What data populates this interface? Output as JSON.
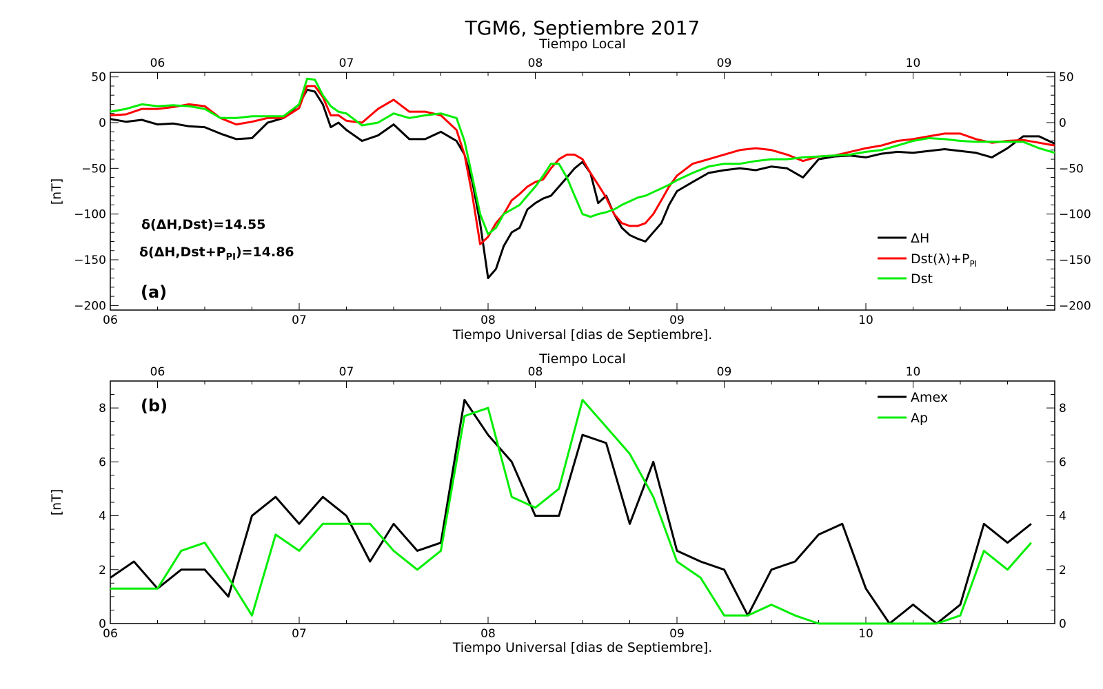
{
  "figure": {
    "title": "TGM6, Septiembre 2017"
  },
  "chart_data": [
    {
      "panel": "(a)",
      "type": "line",
      "xlabel": "Tiempo Universal [dias de Septiembre].",
      "x_top_label": "Tiempo Local",
      "ylabel": "[nT]",
      "x_tick_labels": [
        "06",
        "07",
        "08",
        "09",
        "10"
      ],
      "x_top_tick_labels": [
        "06",
        "07",
        "08",
        "09",
        "10"
      ],
      "y_ticks": [
        -200,
        -150,
        -100,
        -50,
        0,
        50
      ],
      "y_tick_labels": [
        "−200",
        "−150",
        "−100",
        "−50",
        "0",
        "50"
      ],
      "ylim": [
        -205,
        55
      ],
      "xlim_days": [
        6,
        11
      ],
      "annotations": {
        "line1": "δ(ΔH,Dst)=14.55",
        "line2_prefix": "δ(ΔH,Dst+P",
        "line2_sub": "PI",
        "line2_suffix": ")=14.86"
      },
      "legend_position": "lower-right",
      "series": [
        {
          "name": "ΔH",
          "color": "#000000",
          "x": [
            6.0,
            6.083,
            6.167,
            6.25,
            6.333,
            6.417,
            6.5,
            6.583,
            6.667,
            6.75,
            6.833,
            6.917,
            7.0,
            7.042,
            7.083,
            7.125,
            7.167,
            7.208,
            7.25,
            7.333,
            7.417,
            7.5,
            7.583,
            7.667,
            7.75,
            7.833,
            7.875,
            7.917,
            7.958,
            8.0,
            8.042,
            8.083,
            8.125,
            8.167,
            8.208,
            8.25,
            8.292,
            8.333,
            8.375,
            8.417,
            8.458,
            8.5,
            8.542,
            8.583,
            8.625,
            8.667,
            8.708,
            8.75,
            8.792,
            8.833,
            8.875,
            8.917,
            8.958,
            9.0,
            9.083,
            9.167,
            9.25,
            9.333,
            9.417,
            9.5,
            9.583,
            9.667,
            9.75,
            9.833,
            9.917,
            10.0,
            10.083,
            10.167,
            10.25,
            10.333,
            10.417,
            10.5,
            10.583,
            10.667,
            10.75,
            10.833,
            10.917,
            11.0
          ],
          "values": [
            4,
            1,
            3,
            -2,
            -1,
            -4,
            -5,
            -12,
            -18,
            -17,
            0,
            5,
            20,
            36,
            34,
            20,
            -5,
            0,
            -8,
            -20,
            -14,
            -2,
            -18,
            -18,
            -10,
            -20,
            -35,
            -65,
            -110,
            -170,
            -160,
            -135,
            -120,
            -115,
            -95,
            -88,
            -83,
            -80,
            -70,
            -60,
            -50,
            -43,
            -55,
            -88,
            -80,
            -100,
            -115,
            -123,
            -127,
            -130,
            -120,
            -110,
            -90,
            -75,
            -65,
            -55,
            -52,
            -50,
            -52,
            -48,
            -50,
            -60,
            -40,
            -37,
            -36,
            -38,
            -34,
            -32,
            -33,
            -31,
            -29,
            -31,
            -33,
            -38,
            -28,
            -15,
            -15,
            -23
          ]
        },
        {
          "name": "Dst(λ)+P",
          "name_sub": "PI",
          "color": "#ff0000",
          "x": [
            6.0,
            6.083,
            6.167,
            6.25,
            6.333,
            6.417,
            6.5,
            6.583,
            6.667,
            6.75,
            6.833,
            6.917,
            7.0,
            7.042,
            7.083,
            7.125,
            7.167,
            7.208,
            7.25,
            7.333,
            7.417,
            7.5,
            7.583,
            7.667,
            7.75,
            7.833,
            7.875,
            7.917,
            7.958,
            8.0,
            8.042,
            8.083,
            8.125,
            8.167,
            8.208,
            8.25,
            8.292,
            8.333,
            8.375,
            8.417,
            8.458,
            8.5,
            8.542,
            8.583,
            8.625,
            8.667,
            8.708,
            8.75,
            8.792,
            8.833,
            8.875,
            8.917,
            8.958,
            9.0,
            9.083,
            9.167,
            9.25,
            9.333,
            9.417,
            9.5,
            9.583,
            9.667,
            9.75,
            9.833,
            9.917,
            10.0,
            10.083,
            10.167,
            10.25,
            10.333,
            10.417,
            10.5,
            10.583,
            10.667,
            10.75,
            10.833,
            10.917,
            11.0
          ],
          "values": [
            8,
            9,
            15,
            15,
            17,
            20,
            18,
            5,
            -2,
            1,
            5,
            5,
            16,
            40,
            40,
            28,
            8,
            8,
            2,
            0,
            15,
            25,
            12,
            12,
            8,
            -8,
            -35,
            -80,
            -133,
            -125,
            -110,
            -100,
            -85,
            -78,
            -70,
            -65,
            -62,
            -50,
            -40,
            -35,
            -35,
            -40,
            -55,
            -68,
            -82,
            -100,
            -110,
            -113,
            -113,
            -110,
            -100,
            -85,
            -70,
            -58,
            -45,
            -40,
            -35,
            -30,
            -28,
            -30,
            -35,
            -42,
            -37,
            -36,
            -32,
            -28,
            -25,
            -20,
            -18,
            -15,
            -12,
            -12,
            -18,
            -22,
            -20,
            -19,
            -22,
            -25
          ]
        },
        {
          "name": "Dst",
          "color": "#00ee00",
          "x": [
            6.0,
            6.083,
            6.167,
            6.25,
            6.333,
            6.417,
            6.5,
            6.583,
            6.667,
            6.75,
            6.833,
            6.917,
            7.0,
            7.042,
            7.083,
            7.125,
            7.167,
            7.208,
            7.25,
            7.333,
            7.417,
            7.5,
            7.583,
            7.667,
            7.75,
            7.833,
            7.875,
            7.917,
            7.958,
            8.0,
            8.042,
            8.083,
            8.125,
            8.167,
            8.208,
            8.25,
            8.292,
            8.333,
            8.375,
            8.417,
            8.458,
            8.5,
            8.542,
            8.583,
            8.625,
            8.667,
            8.708,
            8.75,
            8.792,
            8.833,
            8.875,
            8.917,
            8.958,
            9.0,
            9.083,
            9.167,
            9.25,
            9.333,
            9.417,
            9.5,
            9.583,
            9.667,
            9.75,
            9.833,
            9.917,
            10.0,
            10.083,
            10.167,
            10.25,
            10.333,
            10.417,
            10.5,
            10.583,
            10.667,
            10.75,
            10.833,
            10.917,
            11.0
          ],
          "values": [
            12,
            15,
            20,
            18,
            19,
            18,
            15,
            5,
            5,
            7,
            7,
            7,
            20,
            48,
            47,
            30,
            18,
            12,
            10,
            -3,
            0,
            10,
            5,
            8,
            10,
            5,
            -20,
            -60,
            -100,
            -122,
            -115,
            -100,
            -95,
            -90,
            -80,
            -70,
            -58,
            -45,
            -45,
            -60,
            -80,
            -100,
            -103,
            -100,
            -98,
            -95,
            -90,
            -86,
            -82,
            -80,
            -76,
            -72,
            -68,
            -63,
            -55,
            -48,
            -45,
            -45,
            -42,
            -40,
            -40,
            -38,
            -37,
            -36,
            -35,
            -32,
            -30,
            -25,
            -20,
            -17,
            -18,
            -20,
            -21,
            -21,
            -21,
            -21,
            -28,
            -33
          ]
        }
      ]
    },
    {
      "panel": "(b)",
      "type": "line",
      "xlabel": "Tiempo Universal [dias de Septiembre].",
      "x_top_label": "Tiempo Local",
      "ylabel": "[nT]",
      "x_tick_labels": [
        "06",
        "07",
        "08",
        "09",
        "10"
      ],
      "x_top_tick_labels": [
        "06",
        "07",
        "08",
        "09",
        "10"
      ],
      "y_ticks": [
        0,
        2,
        4,
        6,
        8
      ],
      "y_tick_labels": [
        "0",
        "2",
        "4",
        "6",
        "8"
      ],
      "ylim": [
        0,
        9
      ],
      "xlim_days": [
        6,
        11
      ],
      "legend_position": "top-right",
      "series": [
        {
          "name": "Amex",
          "color": "#000000",
          "x": [
            6.0,
            6.125,
            6.25,
            6.375,
            6.5,
            6.625,
            6.75,
            6.875,
            7.0,
            7.125,
            7.25,
            7.375,
            7.5,
            7.625,
            7.75,
            7.875,
            8.0,
            8.125,
            8.25,
            8.375,
            8.5,
            8.625,
            8.75,
            8.875,
            9.0,
            9.125,
            9.25,
            9.375,
            9.5,
            9.625,
            9.75,
            9.875,
            10.0,
            10.125,
            10.25,
            10.375,
            10.5,
            10.625,
            10.75,
            10.875
          ],
          "values": [
            1.7,
            2.3,
            1.3,
            2.0,
            2.0,
            1.0,
            4.0,
            4.7,
            3.7,
            4.7,
            4.0,
            2.3,
            3.7,
            2.7,
            3.0,
            8.3,
            7.0,
            6.0,
            4.0,
            4.0,
            7.0,
            6.7,
            3.7,
            6.0,
            2.7,
            2.3,
            2.0,
            0.3,
            2.0,
            2.3,
            3.3,
            3.7,
            1.3,
            0.0,
            0.7,
            0.0,
            0.7,
            3.7,
            3.0,
            3.7
          ]
        },
        {
          "name": "Ap",
          "color": "#00ee00",
          "x": [
            6.0,
            6.125,
            6.25,
            6.375,
            6.5,
            6.625,
            6.75,
            6.875,
            7.0,
            7.125,
            7.25,
            7.375,
            7.5,
            7.625,
            7.75,
            7.875,
            8.0,
            8.125,
            8.25,
            8.375,
            8.5,
            8.625,
            8.75,
            8.875,
            9.0,
            9.125,
            9.25,
            9.375,
            9.5,
            9.625,
            9.75,
            9.875,
            10.0,
            10.125,
            10.25,
            10.375,
            10.5,
            10.625,
            10.75,
            10.875
          ],
          "values": [
            1.3,
            1.3,
            1.3,
            2.7,
            3.0,
            1.7,
            0.3,
            3.3,
            2.7,
            3.7,
            3.7,
            3.7,
            2.7,
            2.0,
            2.7,
            7.7,
            8.0,
            4.7,
            4.3,
            5.0,
            8.3,
            7.3,
            6.3,
            4.7,
            2.3,
            1.7,
            0.3,
            0.3,
            0.7,
            0.3,
            0.0,
            0.0,
            0.0,
            0.0,
            0.0,
            0.0,
            0.3,
            2.7,
            2.0,
            3.0
          ]
        }
      ]
    }
  ]
}
